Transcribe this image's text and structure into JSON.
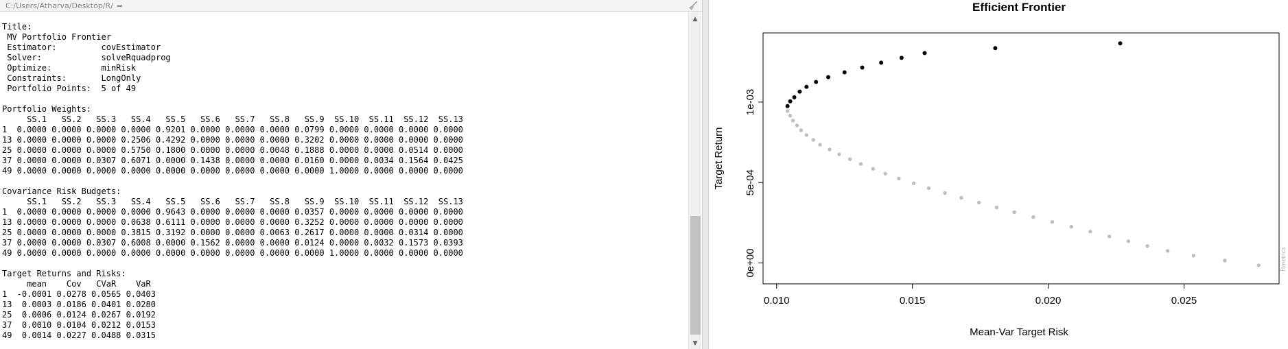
{
  "console": {
    "path": "C:/Users/Atharva/Desktop/R/",
    "lines": [
      "Title:",
      " MV Portfolio Frontier",
      " Estimator:         covEstimator",
      " Solver:            solveRquadprog",
      " Optimize:          minRisk",
      " Constraints:       LongOnly",
      " Portfolio Points:  5 of 49",
      "",
      "Portfolio Weights:",
      "     SS.1   SS.2   SS.3   SS.4   SS.5   SS.6   SS.7   SS.8   SS.9  SS.10  SS.11  SS.12  SS.13",
      "1  0.0000 0.0000 0.0000 0.0000 0.9201 0.0000 0.0000 0.0000 0.0799 0.0000 0.0000 0.0000 0.0000",
      "13 0.0000 0.0000 0.0000 0.2506 0.4292 0.0000 0.0000 0.0000 0.3202 0.0000 0.0000 0.0000 0.0000",
      "25 0.0000 0.0000 0.0000 0.5750 0.1800 0.0000 0.0000 0.0048 0.1888 0.0000 0.0000 0.0514 0.0000",
      "37 0.0000 0.0000 0.0307 0.6071 0.0000 0.1438 0.0000 0.0000 0.0160 0.0000 0.0034 0.1564 0.0425",
      "49 0.0000 0.0000 0.0000 0.0000 0.0000 0.0000 0.0000 0.0000 0.0000 1.0000 0.0000 0.0000 0.0000",
      "",
      "Covariance Risk Budgets:",
      "     SS.1   SS.2   SS.3   SS.4   SS.5   SS.6   SS.7   SS.8   SS.9  SS.10  SS.11  SS.12  SS.13",
      "1  0.0000 0.0000 0.0000 0.0000 0.9643 0.0000 0.0000 0.0000 0.0357 0.0000 0.0000 0.0000 0.0000",
      "13 0.0000 0.0000 0.0000 0.0638 0.6111 0.0000 0.0000 0.0000 0.3252 0.0000 0.0000 0.0000 0.0000",
      "25 0.0000 0.0000 0.0000 0.3815 0.3192 0.0000 0.0000 0.0063 0.2617 0.0000 0.0000 0.0314 0.0000",
      "37 0.0000 0.0000 0.0307 0.6008 0.0000 0.1562 0.0000 0.0000 0.0124 0.0000 0.0032 0.1573 0.0393",
      "49 0.0000 0.0000 0.0000 0.0000 0.0000 0.0000 0.0000 0.0000 0.0000 1.0000 0.0000 0.0000 0.0000",
      "",
      "Target Returns and Risks:",
      "     mean    Cov   CVaR    VaR",
      "1  -0.0001 0.0278 0.0565 0.0403",
      "13  0.0003 0.0186 0.0401 0.0280",
      "25  0.0006 0.0124 0.0267 0.0192",
      "37  0.0010 0.0104 0.0212 0.0153",
      "49  0.0014 0.0227 0.0488 0.0315"
    ]
  },
  "chart_data": {
    "type": "scatter",
    "title": "Efficient Frontier",
    "xlabel": "Mean-Var Target Risk",
    "ylabel": "Target Return",
    "xlim": [
      0.0095,
      0.0285
    ],
    "ylim": [
      -0.00013,
      0.00143
    ],
    "x_ticks": [
      0.01,
      0.015,
      0.02,
      0.025
    ],
    "x_tick_labels": [
      "0.010",
      "0.015",
      "0.020",
      "0.025"
    ],
    "y_ticks": [
      0.0,
      0.0005,
      0.001
    ],
    "y_tick_labels": [
      "0e+00",
      "5e-04",
      "1e-03"
    ],
    "grid": false,
    "watermark": "Rmetrics",
    "series": [
      {
        "color": "#000000",
        "points": [
          [
            0.0104,
            0.000975
          ],
          [
            0.0105,
            0.001005
          ],
          [
            0.01065,
            0.00103
          ],
          [
            0.01085,
            0.001065
          ],
          [
            0.0111,
            0.001095
          ],
          [
            0.01145,
            0.001125
          ],
          [
            0.0119,
            0.001155
          ],
          [
            0.0125,
            0.001185
          ],
          [
            0.01315,
            0.001215
          ],
          [
            0.01385,
            0.001245
          ],
          [
            0.0146,
            0.001275
          ],
          [
            0.01545,
            0.001305
          ],
          [
            0.01805,
            0.001335
          ],
          [
            0.02265,
            0.001365
          ]
        ]
      },
      {
        "color": "#bebebe",
        "points": [
          [
            0.0104,
            0.000945
          ],
          [
            0.0105,
            0.000915
          ],
          [
            0.0106,
            0.000885
          ],
          [
            0.01075,
            0.000855
          ],
          [
            0.0109,
            0.000825
          ],
          [
            0.0111,
            0.000795
          ],
          [
            0.01135,
            0.000765
          ],
          [
            0.0116,
            0.000735
          ],
          [
            0.01195,
            0.000705
          ],
          [
            0.0123,
            0.000675
          ],
          [
            0.0127,
            0.000645
          ],
          [
            0.0131,
            0.000615
          ],
          [
            0.01355,
            0.000585
          ],
          [
            0.014,
            0.000555
          ],
          [
            0.0145,
            0.000525
          ],
          [
            0.01505,
            0.000495
          ],
          [
            0.0156,
            0.000465
          ],
          [
            0.0162,
            0.000435
          ],
          [
            0.0168,
            0.000405
          ],
          [
            0.01745,
            0.000375
          ],
          [
            0.0181,
            0.000345
          ],
          [
            0.01875,
            0.000315
          ],
          [
            0.01945,
            0.000285
          ],
          [
            0.02015,
            0.000255
          ],
          [
            0.02085,
            0.000225
          ],
          [
            0.02155,
            0.000195
          ],
          [
            0.02225,
            0.000165
          ],
          [
            0.02295,
            0.000135
          ],
          [
            0.02365,
            0.000105
          ],
          [
            0.0244,
            7.5e-05
          ],
          [
            0.02535,
            4.5e-05
          ],
          [
            0.0265,
            1.5e-05
          ],
          [
            0.02775,
            -1.5e-05
          ]
        ]
      }
    ]
  }
}
